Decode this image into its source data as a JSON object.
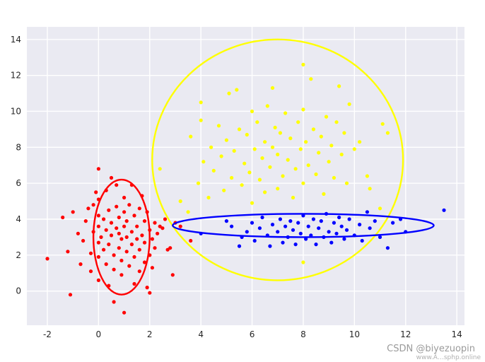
{
  "chart_data": {
    "type": "scatter",
    "title": "",
    "xlabel": "",
    "ylabel": "",
    "xlim": [
      -2.8,
      14.3
    ],
    "ylim": [
      -1.9,
      14.7
    ],
    "xticks": [
      "-2",
      "0",
      "2",
      "4",
      "6",
      "8",
      "10",
      "12",
      "14"
    ],
    "yticks": [
      "0",
      "2",
      "4",
      "6",
      "8",
      "10",
      "12",
      "14"
    ],
    "grid": true,
    "background": "#eaeaf2",
    "series": [
      {
        "color": "#ff0000",
        "cluster": {
          "cx": 0.9,
          "cy": 3.0,
          "rx": 1.1,
          "ry": 3.2
        },
        "points": [
          [
            -2.0,
            1.8
          ],
          [
            -1.4,
            4.1
          ],
          [
            -1.2,
            2.2
          ],
          [
            -1.1,
            -0.2
          ],
          [
            -1.0,
            4.4
          ],
          [
            -0.8,
            3.2
          ],
          [
            -0.7,
            1.5
          ],
          [
            -0.6,
            2.8
          ],
          [
            -0.5,
            3.9
          ],
          [
            -0.4,
            4.6
          ],
          [
            -0.3,
            1.1
          ],
          [
            -0.3,
            2.1
          ],
          [
            -0.2,
            3.3
          ],
          [
            -0.2,
            4.8
          ],
          [
            -0.1,
            5.5
          ],
          [
            0.0,
            0.6
          ],
          [
            0.0,
            1.9
          ],
          [
            0.0,
            2.7
          ],
          [
            0.0,
            3.6
          ],
          [
            0.0,
            4.2
          ],
          [
            0.0,
            5.1
          ],
          [
            0.0,
            6.8
          ],
          [
            0.1,
            3.0
          ],
          [
            0.2,
            2.3
          ],
          [
            0.2,
            4.0
          ],
          [
            0.3,
            1.5
          ],
          [
            0.3,
            3.4
          ],
          [
            0.3,
            5.6
          ],
          [
            0.4,
            0.3
          ],
          [
            0.4,
            2.6
          ],
          [
            0.4,
            4.5
          ],
          [
            0.5,
            3.1
          ],
          [
            0.5,
            3.8
          ],
          [
            0.5,
            6.3
          ],
          [
            0.6,
            1.2
          ],
          [
            0.6,
            2.0
          ],
          [
            0.6,
            -0.6
          ],
          [
            0.7,
            3.5
          ],
          [
            0.7,
            4.7
          ],
          [
            0.7,
            5.9
          ],
          [
            0.8,
            2.4
          ],
          [
            0.8,
            3.2
          ],
          [
            0.8,
            4.1
          ],
          [
            0.9,
            0.9
          ],
          [
            0.9,
            1.7
          ],
          [
            0.9,
            2.9
          ],
          [
            1.0,
            3.6
          ],
          [
            1.0,
            4.4
          ],
          [
            1.0,
            5.2
          ],
          [
            1.0,
            -1.2
          ],
          [
            1.1,
            2.2
          ],
          [
            1.1,
            3.0
          ],
          [
            1.1,
            3.9
          ],
          [
            1.2,
            1.4
          ],
          [
            1.2,
            4.8
          ],
          [
            1.3,
            2.6
          ],
          [
            1.3,
            3.3
          ],
          [
            1.3,
            5.9
          ],
          [
            1.4,
            0.4
          ],
          [
            1.4,
            1.9
          ],
          [
            1.4,
            4.2
          ],
          [
            1.5,
            2.9
          ],
          [
            1.5,
            3.6
          ],
          [
            1.6,
            1.1
          ],
          [
            1.6,
            2.3
          ],
          [
            1.6,
            4.6
          ],
          [
            1.7,
            3.1
          ],
          [
            1.7,
            5.3
          ],
          [
            1.8,
            1.6
          ],
          [
            1.8,
            2.7
          ],
          [
            1.8,
            3.9
          ],
          [
            1.9,
            0.2
          ],
          [
            1.9,
            4.4
          ],
          [
            2.0,
            2.0
          ],
          [
            2.0,
            3.4
          ],
          [
            2.0,
            -0.1
          ],
          [
            2.1,
            2.9
          ],
          [
            2.1,
            1.3
          ],
          [
            2.2,
            3.8
          ],
          [
            2.2,
            2.4
          ],
          [
            2.3,
            3.2
          ],
          [
            2.4,
            3.6
          ],
          [
            2.5,
            3.5
          ],
          [
            2.6,
            4.0
          ],
          [
            2.7,
            2.3
          ],
          [
            2.8,
            2.4
          ],
          [
            2.9,
            0.9
          ],
          [
            3.0,
            3.8
          ],
          [
            3.2,
            3.6
          ],
          [
            3.6,
            2.8
          ]
        ]
      },
      {
        "color": "#ffff00",
        "cluster": {
          "cx": 7.0,
          "cy": 7.3,
          "rx": 4.9,
          "ry": 6.7
        },
        "points": [
          [
            2.4,
            6.8
          ],
          [
            3.2,
            5.0
          ],
          [
            3.5,
            4.4
          ],
          [
            3.6,
            8.6
          ],
          [
            3.9,
            6.0
          ],
          [
            4.0,
            9.5
          ],
          [
            4.0,
            10.5
          ],
          [
            4.1,
            7.2
          ],
          [
            4.3,
            5.2
          ],
          [
            4.4,
            8.0
          ],
          [
            4.5,
            6.7
          ],
          [
            4.7,
            9.2
          ],
          [
            4.8,
            7.5
          ],
          [
            4.9,
            5.6
          ],
          [
            5.0,
            8.4
          ],
          [
            5.1,
            11.0
          ],
          [
            5.2,
            6.3
          ],
          [
            5.3,
            7.8
          ],
          [
            5.4,
            11.2
          ],
          [
            5.5,
            9.0
          ],
          [
            5.6,
            5.9
          ],
          [
            5.7,
            7.1
          ],
          [
            5.8,
            8.7
          ],
          [
            5.9,
            6.6
          ],
          [
            6.0,
            10.0
          ],
          [
            6.0,
            4.9
          ],
          [
            6.1,
            7.9
          ],
          [
            6.2,
            9.4
          ],
          [
            6.3,
            6.2
          ],
          [
            6.4,
            7.4
          ],
          [
            6.5,
            8.3
          ],
          [
            6.5,
            5.5
          ],
          [
            6.6,
            10.3
          ],
          [
            6.7,
            6.9
          ],
          [
            6.8,
            8.0
          ],
          [
            6.8,
            11.3
          ],
          [
            6.9,
            9.1
          ],
          [
            7.0,
            5.7
          ],
          [
            7.0,
            7.6
          ],
          [
            7.1,
            8.8
          ],
          [
            7.2,
            6.4
          ],
          [
            7.3,
            9.9
          ],
          [
            7.4,
            7.3
          ],
          [
            7.5,
            8.5
          ],
          [
            7.6,
            5.2
          ],
          [
            7.7,
            6.8
          ],
          [
            7.8,
            9.4
          ],
          [
            7.9,
            7.9
          ],
          [
            8.0,
            10.1
          ],
          [
            8.0,
            6.0
          ],
          [
            8.0,
            12.6
          ],
          [
            8.0,
            1.6
          ],
          [
            8.1,
            8.3
          ],
          [
            8.2,
            7.0
          ],
          [
            8.3,
            11.8
          ],
          [
            8.4,
            9.0
          ],
          [
            8.5,
            6.5
          ],
          [
            8.6,
            7.7
          ],
          [
            8.7,
            8.6
          ],
          [
            8.8,
            5.4
          ],
          [
            8.9,
            9.7
          ],
          [
            9.0,
            7.2
          ],
          [
            9.1,
            8.1
          ],
          [
            9.2,
            6.3
          ],
          [
            9.3,
            9.4
          ],
          [
            9.4,
            11.4
          ],
          [
            9.5,
            7.6
          ],
          [
            9.6,
            8.8
          ],
          [
            9.7,
            6.0
          ],
          [
            9.8,
            10.4
          ],
          [
            10.0,
            7.9
          ],
          [
            10.2,
            8.3
          ],
          [
            10.5,
            6.4
          ],
          [
            10.6,
            5.7
          ],
          [
            11.0,
            4.6
          ],
          [
            11.1,
            9.3
          ],
          [
            11.3,
            8.8
          ]
        ]
      },
      {
        "color": "#0000ff",
        "cluster": {
          "cx": 8.0,
          "cy": 3.65,
          "rx": 5.1,
          "ry": 0.65
        },
        "points": [
          [
            4.0,
            3.2
          ],
          [
            5.0,
            3.9
          ],
          [
            5.2,
            3.6
          ],
          [
            5.5,
            2.5
          ],
          [
            5.6,
            3.0
          ],
          [
            5.8,
            3.3
          ],
          [
            6.0,
            3.8
          ],
          [
            6.1,
            2.8
          ],
          [
            6.3,
            3.5
          ],
          [
            6.4,
            4.1
          ],
          [
            6.6,
            3.1
          ],
          [
            6.7,
            2.5
          ],
          [
            6.8,
            3.7
          ],
          [
            7.0,
            3.3
          ],
          [
            7.1,
            4.0
          ],
          [
            7.2,
            2.7
          ],
          [
            7.3,
            3.6
          ],
          [
            7.4,
            3.0
          ],
          [
            7.5,
            3.9
          ],
          [
            7.6,
            3.4
          ],
          [
            7.7,
            2.6
          ],
          [
            7.8,
            3.8
          ],
          [
            7.9,
            3.2
          ],
          [
            8.0,
            4.2
          ],
          [
            8.1,
            2.9
          ],
          [
            8.2,
            3.6
          ],
          [
            8.3,
            3.1
          ],
          [
            8.4,
            4.0
          ],
          [
            8.5,
            2.6
          ],
          [
            8.6,
            3.5
          ],
          [
            8.7,
            3.9
          ],
          [
            8.8,
            3.0
          ],
          [
            8.9,
            4.3
          ],
          [
            9.0,
            3.3
          ],
          [
            9.1,
            2.7
          ],
          [
            9.2,
            3.8
          ],
          [
            9.3,
            3.2
          ],
          [
            9.4,
            4.1
          ],
          [
            9.5,
            3.6
          ],
          [
            9.6,
            2.9
          ],
          [
            9.7,
            3.4
          ],
          [
            9.8,
            4.0
          ],
          [
            10.0,
            3.1
          ],
          [
            10.2,
            3.7
          ],
          [
            10.3,
            2.8
          ],
          [
            10.5,
            4.4
          ],
          [
            10.6,
            3.5
          ],
          [
            10.8,
            3.9
          ],
          [
            11.0,
            3.0
          ],
          [
            11.3,
            2.4
          ],
          [
            11.5,
            3.8
          ],
          [
            11.8,
            4.0
          ],
          [
            12.0,
            3.3
          ],
          [
            13.5,
            4.5
          ]
        ]
      }
    ]
  },
  "watermark": {
    "csdn": "CSDN @biyezuopin",
    "site": "www.Ä…sphp.online"
  }
}
